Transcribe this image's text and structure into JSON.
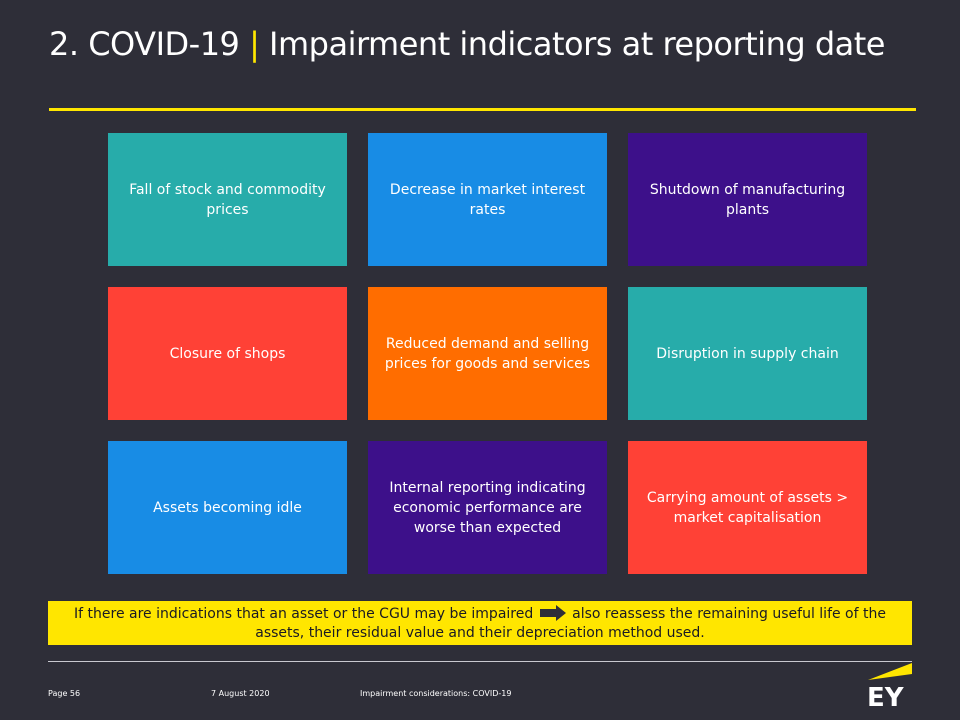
{
  "title": {
    "number": "2. COVID-19",
    "separator": "|",
    "text": "Impairment indicators at reporting date"
  },
  "indicators": [
    {
      "label": "Fall of stock and commodity prices",
      "color": "#27acaa"
    },
    {
      "label": "Decrease in market interest rates",
      "color": "#188ce5"
    },
    {
      "label": "Shutdown of manufacturing plants",
      "color": "#3d108a"
    },
    {
      "label": "Closure of shops",
      "color": "#ff4136"
    },
    {
      "label": "Reduced demand and selling prices for goods and services",
      "color": "#ff6d00"
    },
    {
      "label": "Disruption in supply chain",
      "color": "#27acaa"
    },
    {
      "label": "Assets becoming idle",
      "color": "#188ce5"
    },
    {
      "label": "Internal reporting indicating economic performance are worse than expected",
      "color": "#3d108a"
    },
    {
      "label": "Carrying amount of assets > market capitalisation",
      "color": "#ff4136"
    }
  ],
  "banner": {
    "part1": "If there are indications that an asset or the CGU may be impaired",
    "part2": "also reassess the remaining useful life of the assets, their residual value and their depreciation method used."
  },
  "footer": {
    "page": "Page 56",
    "date": "7 August 2020",
    "doc_title": "Impairment considerations: COVID-19"
  },
  "logo": {
    "text": "EY"
  },
  "colors": {
    "background": "#2e2e38",
    "accent": "#ffe600"
  }
}
